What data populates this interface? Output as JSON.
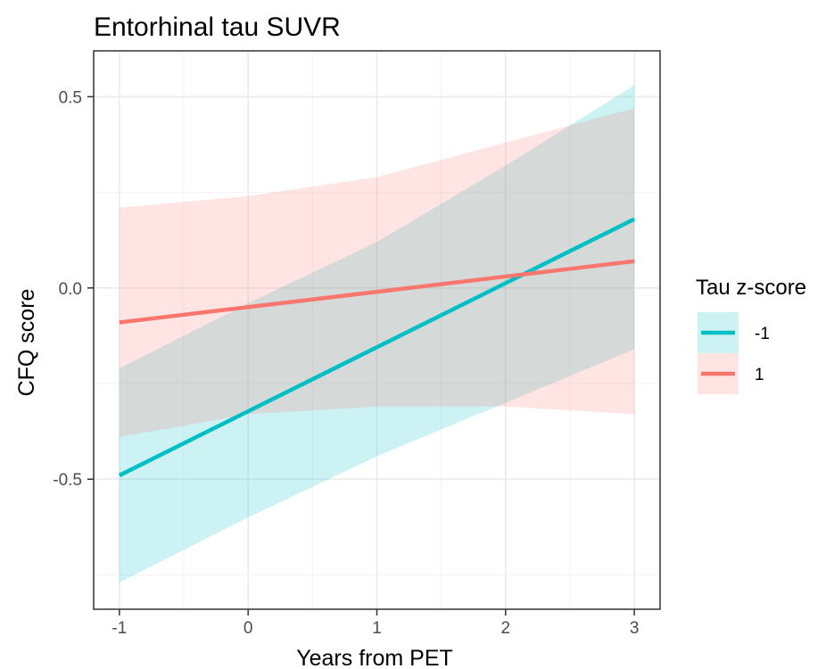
{
  "chart_data": {
    "type": "line",
    "title": "Entorhinal tau SUVR",
    "xlabel": "Years from PET",
    "ylabel": "CFQ score",
    "xlim": [
      -1.2,
      3.2
    ],
    "ylim": [
      -0.84,
      0.62
    ],
    "xticks": [
      -1,
      0,
      1,
      2,
      3
    ],
    "xtick_labels": [
      "-1",
      "0",
      "1",
      "2",
      "3"
    ],
    "yticks": [
      -0.5,
      0.0,
      0.5
    ],
    "ytick_labels": [
      "-0.5",
      "0.0",
      "0.5"
    ],
    "grid": true,
    "legend": {
      "title": "Tau z-score",
      "position": "right"
    },
    "series": [
      {
        "name": "-1",
        "color": "#00BFC4",
        "x": [
          -1,
          3
        ],
        "y": [
          -0.49,
          0.18
        ],
        "ci_lower": [
          [
            -1,
            -0.77
          ],
          [
            0,
            -0.6
          ],
          [
            1,
            -0.44
          ],
          [
            2,
            -0.3
          ],
          [
            3,
            -0.16
          ]
        ],
        "ci_upper": [
          [
            -1,
            -0.21
          ],
          [
            0,
            -0.04
          ],
          [
            1,
            0.12
          ],
          [
            2,
            0.32
          ],
          [
            3,
            0.53
          ]
        ]
      },
      {
        "name": "1",
        "color": "#F8766D",
        "x": [
          -1,
          3
        ],
        "y": [
          -0.09,
          0.07
        ],
        "ci_lower": [
          [
            -1,
            -0.39
          ],
          [
            0,
            -0.33
          ],
          [
            1,
            -0.31
          ],
          [
            2,
            -0.31
          ],
          [
            3,
            -0.33
          ]
        ],
        "ci_upper": [
          [
            -1,
            0.21
          ],
          [
            0,
            0.24
          ],
          [
            1,
            0.29
          ],
          [
            2,
            0.38
          ],
          [
            3,
            0.47
          ]
        ]
      }
    ]
  }
}
